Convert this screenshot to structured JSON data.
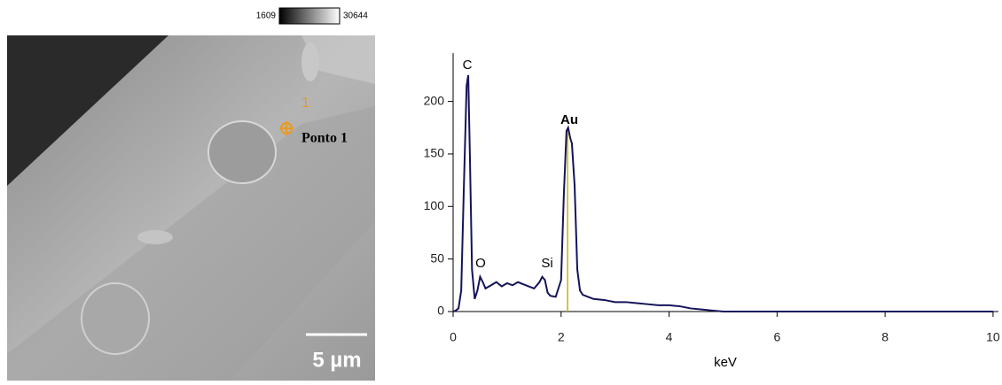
{
  "image": {
    "colorbar_min": 1609,
    "colorbar_max": 30644,
    "point_marker": "1",
    "point_label": "Ponto 1",
    "scale_bar": "5 µm"
  },
  "chart_data": {
    "type": "line",
    "x_label": "keV",
    "x": [
      0,
      0.05,
      0.1,
      0.15,
      0.2,
      0.25,
      0.28,
      0.31,
      0.35,
      0.4,
      0.45,
      0.5,
      0.55,
      0.6,
      0.7,
      0.8,
      0.9,
      1.0,
      1.1,
      1.2,
      1.3,
      1.4,
      1.5,
      1.6,
      1.65,
      1.7,
      1.75,
      1.8,
      1.9,
      2.0,
      2.05,
      2.1,
      2.13,
      2.17,
      2.2,
      2.25,
      2.3,
      2.35,
      2.4,
      2.5,
      2.6,
      2.8,
      3.0,
      3.2,
      3.4,
      3.6,
      3.8,
      4.0,
      4.2,
      4.4,
      4.6,
      4.8,
      5.0,
      6,
      7,
      8,
      9,
      10
    ],
    "values": [
      0,
      1,
      3,
      20,
      120,
      215,
      225,
      150,
      40,
      12,
      20,
      33,
      28,
      22,
      25,
      28,
      24,
      27,
      25,
      28,
      26,
      24,
      22,
      28,
      33,
      30,
      18,
      15,
      14,
      30,
      110,
      172,
      175,
      165,
      160,
      120,
      40,
      20,
      16,
      14,
      12,
      11,
      9,
      9,
      8,
      7,
      6,
      6,
      5,
      3,
      2,
      1,
      0,
      0,
      0,
      0,
      0,
      0
    ],
    "color": "#14145a",
    "cursor": 2.12,
    "cursor_color": "#c8b400",
    "xlim": [
      0,
      10.1
    ],
    "xticks": [
      0,
      2,
      4,
      6,
      8,
      10
    ],
    "ylim": [
      0,
      246
    ],
    "yticks": [
      0,
      50,
      100,
      150,
      200
    ],
    "annotations": [
      "C",
      "O",
      "Si",
      "Au"
    ]
  }
}
